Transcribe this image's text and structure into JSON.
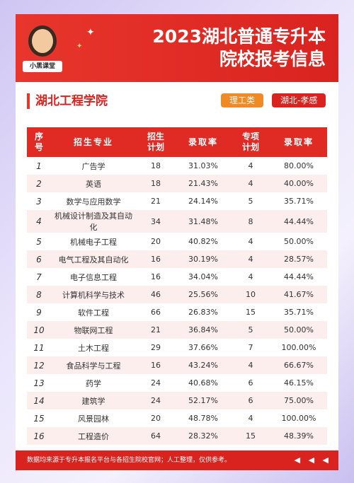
{
  "header": {
    "logo": "小黑课堂",
    "title_line1": "2023湖北普通专升本",
    "title_line2": "院校报考信息"
  },
  "section": {
    "title": "湖北工程学院",
    "tags": [
      "理工类",
      "湖北-孝感"
    ]
  },
  "table": {
    "columns": [
      "序号",
      "招生专业",
      "招生计划",
      "录取率",
      "专项计划",
      "录取率"
    ],
    "rows": [
      [
        "1",
        "广告学",
        "18",
        "31.03%",
        "4",
        "80.00%"
      ],
      [
        "2",
        "英语",
        "18",
        "21.43%",
        "4",
        "40.00%"
      ],
      [
        "3",
        "数学与应用数学",
        "21",
        "24.14%",
        "5",
        "35.71%"
      ],
      [
        "4",
        "机械设计制造及其自动化",
        "34",
        "31.48%",
        "8",
        "44.44%"
      ],
      [
        "5",
        "机械电子工程",
        "20",
        "40.82%",
        "4",
        "50.00%"
      ],
      [
        "6",
        "电气工程及其自动化",
        "16",
        "30.19%",
        "4",
        "28.57%"
      ],
      [
        "7",
        "电子信息工程",
        "16",
        "34.04%",
        "4",
        "44.44%"
      ],
      [
        "8",
        "计算机科学与技术",
        "46",
        "25.56%",
        "10",
        "41.67%"
      ],
      [
        "9",
        "软件工程",
        "66",
        "26.83%",
        "15",
        "35.71%"
      ],
      [
        "10",
        "物联网工程",
        "21",
        "36.84%",
        "5",
        "50.00%"
      ],
      [
        "11",
        "土木工程",
        "29",
        "37.66%",
        "7",
        "100.00%"
      ],
      [
        "12",
        "食品科学与工程",
        "16",
        "43.24%",
        "4",
        "66.67%"
      ],
      [
        "13",
        "药学",
        "24",
        "40.68%",
        "6",
        "46.15%"
      ],
      [
        "14",
        "建筑学",
        "24",
        "52.17%",
        "6",
        "75.00%"
      ],
      [
        "15",
        "风景园林",
        "20",
        "48.78%",
        "4",
        "100.00%"
      ],
      [
        "16",
        "工程造价",
        "64",
        "28.32%",
        "15",
        "48.39%"
      ]
    ]
  },
  "footer": {
    "note": "数据均来源于专升本报名平台与各招生院校官网；人工整理，仅供参考。"
  }
}
